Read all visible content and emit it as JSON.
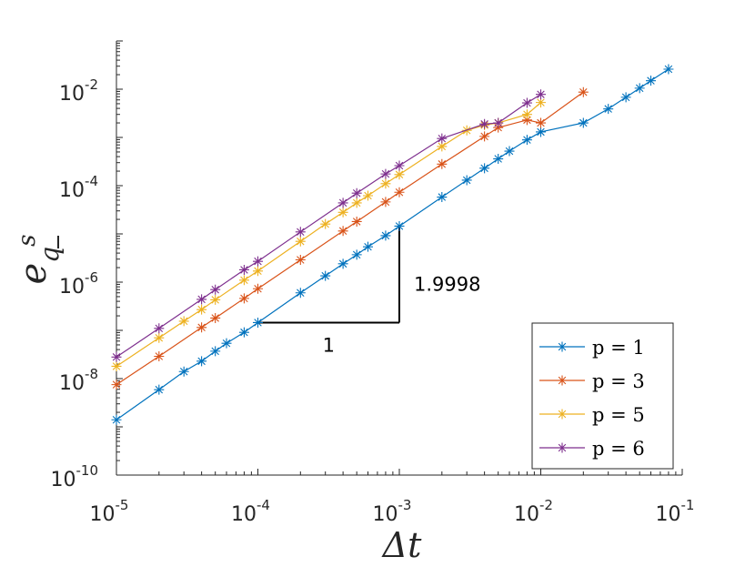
{
  "chart_data": {
    "type": "line",
    "xscale": "log",
    "yscale": "log",
    "xlim": [
      1e-05,
      0.1
    ],
    "ylim": [
      1e-10,
      0.1
    ],
    "xlabel": "Δt",
    "ylabel": {
      "base": "e",
      "sub": "q",
      "sup": "s"
    },
    "x_ticks": [
      {
        "base": "10",
        "exp": "-5"
      },
      {
        "base": "10",
        "exp": "-4"
      },
      {
        "base": "10",
        "exp": "-3"
      },
      {
        "base": "10",
        "exp": "-2"
      },
      {
        "base": "10",
        "exp": "-1"
      }
    ],
    "y_ticks": [
      {
        "base": "10",
        "exp": "-10"
      },
      {
        "base": "10",
        "exp": "-8"
      },
      {
        "base": "10",
        "exp": "-6"
      },
      {
        "base": "10",
        "exp": "-4"
      },
      {
        "base": "10",
        "exp": "-2"
      }
    ],
    "legend_position": "bottom-right",
    "series": [
      {
        "name": "p = 1",
        "color": "#0072bd",
        "x": [
          1e-05,
          2e-05,
          3e-05,
          4e-05,
          5e-05,
          6e-05,
          8e-05,
          0.0001,
          0.0002,
          0.0003,
          0.0004,
          0.0005,
          0.0006,
          0.0008,
          0.001,
          0.002,
          0.003,
          0.004,
          0.005,
          0.006,
          0.008,
          0.01,
          0.02,
          0.03,
          0.04,
          0.05,
          0.06,
          0.08
        ],
        "y": [
          1.4e-09,
          5.9e-09,
          1.4e-08,
          2.3e-08,
          3.7e-08,
          5.4e-08,
          9.1e-08,
          1.45e-07,
          6e-07,
          1.35e-06,
          2.4e-06,
          3.7e-06,
          5.4e-06,
          9.2e-06,
          1.45e-05,
          5.8e-05,
          0.00013,
          0.00023,
          0.00036,
          0.00052,
          0.00089,
          0.0013,
          0.002,
          0.0039,
          0.0068,
          0.0105,
          0.015,
          0.026
        ]
      },
      {
        "name": "p = 3",
        "color": "#d95319",
        "x": [
          1e-05,
          2e-05,
          4e-05,
          5e-05,
          8e-05,
          0.0001,
          0.0002,
          0.0004,
          0.0005,
          0.0008,
          0.001,
          0.002,
          0.004,
          0.005,
          0.008,
          0.01,
          0.02
        ],
        "y": [
          7.5e-09,
          2.9e-08,
          1.15e-07,
          1.8e-07,
          4.6e-07,
          7.3e-07,
          2.9e-06,
          1.15e-05,
          1.8e-05,
          4.6e-05,
          7.3e-05,
          0.00028,
          0.00105,
          0.0016,
          0.0023,
          0.002,
          0.0087
        ]
      },
      {
        "name": "p = 5",
        "color": "#edb120",
        "x": [
          1e-05,
          2e-05,
          3e-05,
          4e-05,
          5e-05,
          8e-05,
          0.0001,
          0.0002,
          0.0003,
          0.0004,
          0.0005,
          0.0006,
          0.0008,
          0.001,
          0.002,
          0.003,
          0.004,
          0.005,
          0.008,
          0.01
        ],
        "y": [
          1.8e-08,
          7e-08,
          1.55e-07,
          2.7e-07,
          4.3e-07,
          1.1e-06,
          1.7e-06,
          7e-06,
          1.6e-05,
          2.8e-05,
          4.4e-05,
          6.2e-05,
          0.00011,
          0.00017,
          0.00065,
          0.0014,
          0.0018,
          0.002,
          0.003,
          0.0053
        ]
      },
      {
        "name": "p = 6",
        "color": "#7e2f8e",
        "x": [
          1e-05,
          2e-05,
          4e-05,
          5e-05,
          8e-05,
          0.0001,
          0.0002,
          0.0004,
          0.0005,
          0.0008,
          0.001,
          0.002,
          0.004,
          0.005,
          0.008,
          0.01
        ],
        "y": [
          2.8e-08,
          1.1e-07,
          4.4e-07,
          7e-07,
          1.8e-06,
          2.7e-06,
          1.1e-05,
          4.4e-05,
          7e-05,
          0.000175,
          0.00026,
          0.00095,
          0.0019,
          0.002,
          0.0052,
          0.0078
        ]
      }
    ],
    "slope_triangle": {
      "x_start": 0.0001,
      "x_end": 0.001,
      "y_start": 1.45e-07,
      "y_end": 1.45e-05,
      "run_label": "1",
      "rise_label": "1.9998"
    }
  }
}
